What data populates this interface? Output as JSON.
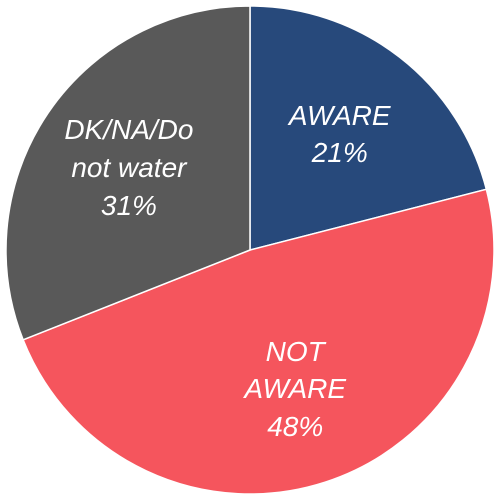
{
  "chart_data": {
    "type": "pie",
    "categories": [
      "AWARE",
      "NOT AWARE",
      "DK/NA/Do not water"
    ],
    "values": [
      21,
      48,
      31
    ],
    "value_labels": [
      "21%",
      "48%",
      "31%"
    ],
    "colors": [
      "#27497b",
      "#f5555d",
      "#595959"
    ]
  }
}
